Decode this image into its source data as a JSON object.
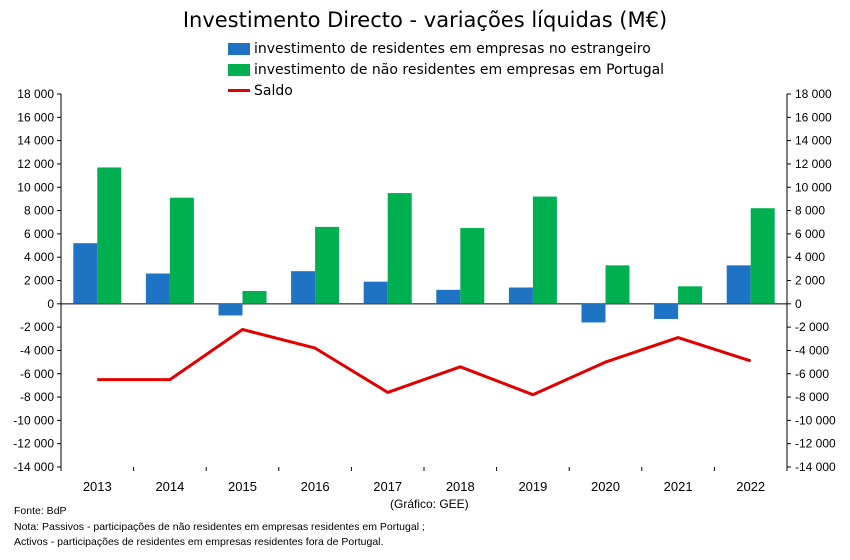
{
  "chart_data": {
    "type": "bar",
    "title": "Investimento Directo - variações líquidas (M€)",
    "categories": [
      "2013",
      "2014",
      "2015",
      "2016",
      "2017",
      "2018",
      "2019",
      "2020",
      "2021",
      "2022"
    ],
    "series": [
      {
        "name": "investimento de residentes em empresas no estrangeiro",
        "type": "bar",
        "color": "#1f73c4",
        "values": [
          5200,
          2600,
          -1000,
          2800,
          1900,
          1200,
          1400,
          -1600,
          -1300,
          3300
        ]
      },
      {
        "name": "investimento de não residentes em empresas em Portugal",
        "type": "bar",
        "color": "#00b050",
        "values": [
          11700,
          9100,
          1100,
          6600,
          9500,
          6500,
          9200,
          3300,
          1500,
          8200
        ]
      },
      {
        "name": "Saldo",
        "type": "line",
        "color": "#e00000",
        "values": [
          -6500,
          -6500,
          -2200,
          -3800,
          -7600,
          -5400,
          -7800,
          -5000,
          -2900,
          -4900
        ]
      }
    ],
    "ylim": [
      -14000,
      18000
    ],
    "yticks": [
      -14000,
      -12000,
      -10000,
      -8000,
      -6000,
      -4000,
      -2000,
      0,
      2000,
      4000,
      6000,
      8000,
      10000,
      12000,
      14000,
      16000,
      18000
    ],
    "ytick_labels": [
      "-14 000",
      "-12 000",
      "-10 000",
      "-8 000",
      "-6 000",
      "-4 000",
      "-2 000",
      "0",
      "2 000",
      "4 000",
      "6 000",
      "8 000",
      "10 000",
      "12 000",
      "14 000",
      "16 000",
      "18 000"
    ],
    "secondary_axis": true,
    "grid": false,
    "legend_position": "top-center"
  },
  "credit": "(Gráfico: GEE)",
  "notes": {
    "source": "Fonte: BdP",
    "line1": "Nota: Passivos - participações de não residentes em empresas residentes em Portugal ;",
    "line2": "Activos - participações de residentes em empresas residentes fora de Portugal."
  }
}
